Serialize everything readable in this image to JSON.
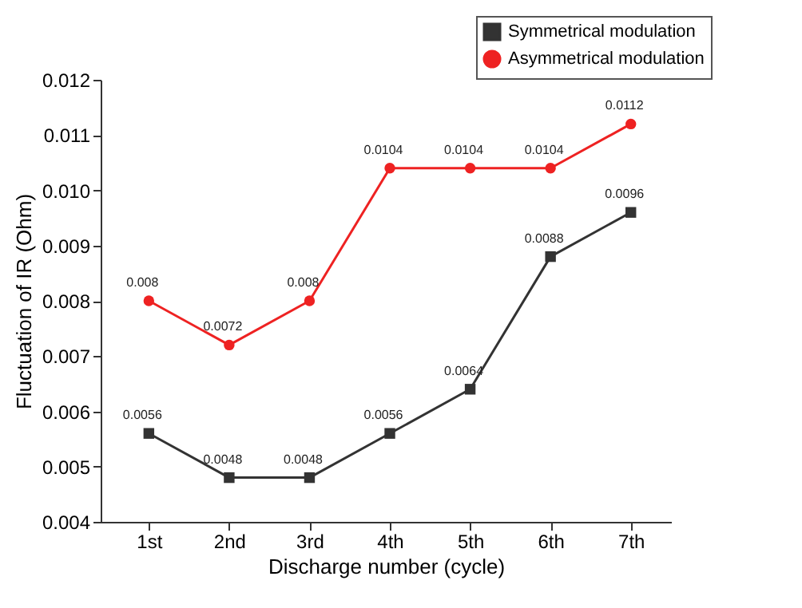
{
  "chart_data": {
    "type": "line",
    "xlabel": "Discharge number (cycle)",
    "ylabel": "Fluctuation of IR (Ohm)",
    "categories": [
      "1st",
      "2nd",
      "3rd",
      "4th",
      "5th",
      "6th",
      "7th"
    ],
    "series": [
      {
        "name": "Symmetrical modulation",
        "color": "#333333",
        "marker": "square",
        "values": [
          0.0056,
          0.0048,
          0.0048,
          0.0056,
          0.0064,
          0.0088,
          0.0096
        ]
      },
      {
        "name": "Asymmetrical modulation",
        "color": "#ee2222",
        "marker": "circle",
        "values": [
          0.008,
          0.0072,
          0.008,
          0.0104,
          0.0104,
          0.0104,
          0.0112
        ]
      }
    ],
    "ylim": [
      0.004,
      0.012
    ],
    "yticks": [
      0.004,
      0.005,
      0.006,
      0.007,
      0.008,
      0.009,
      {
        "value": 0.01,
        "label": "0.010"
      },
      0.011,
      0.012
    ],
    "data_labels": true,
    "grid": false,
    "legend": "top right",
    "line_style": "solid"
  }
}
